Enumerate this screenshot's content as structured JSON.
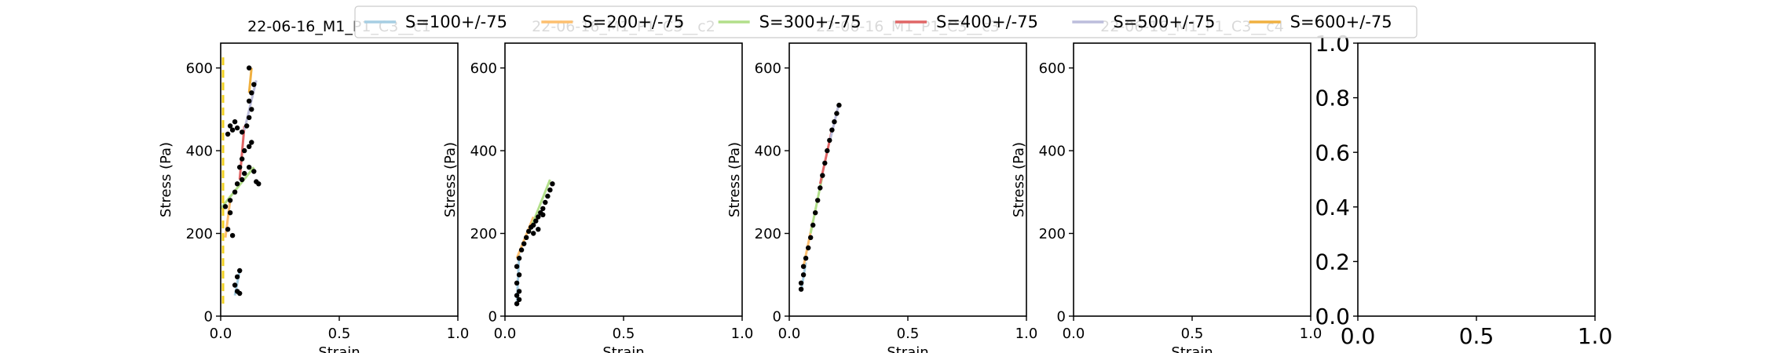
{
  "legend": {
    "entries": [
      {
        "label": "S=100+/-75",
        "color": "#a6cee3"
      },
      {
        "label": "S=200+/-75",
        "color": "#fdbf6f"
      },
      {
        "label": "S=300+/-75",
        "color": "#b2df8a"
      },
      {
        "label": "S=400+/-75",
        "color": "#e06666"
      },
      {
        "label": "S=500+/-75",
        "color": "#bcbddc"
      },
      {
        "label": "S=600+/-75",
        "color": "#f0b040"
      }
    ]
  },
  "chart_data": [
    {
      "type": "scatter",
      "title": "22-06-16_M1_P1_C3__c1",
      "xlabel": "Strain",
      "ylabel": "Stress (Pa)",
      "xlim": [
        0,
        1
      ],
      "ylim": [
        0,
        660
      ],
      "xticks": [
        "0.0",
        "0.5",
        "1.0"
      ],
      "yticks": [
        "0",
        "200",
        "400",
        "600"
      ],
      "points": [
        [
          0.06,
          75
        ],
        [
          0.07,
          95
        ],
        [
          0.08,
          110
        ],
        [
          0.07,
          60
        ],
        [
          0.08,
          55
        ],
        [
          0.05,
          195
        ],
        [
          0.03,
          210
        ],
        [
          0.04,
          250
        ],
        [
          0.02,
          265
        ],
        [
          0.04,
          280
        ],
        [
          0.06,
          300
        ],
        [
          0.07,
          320
        ],
        [
          0.09,
          330
        ],
        [
          0.1,
          345
        ],
        [
          0.12,
          360
        ],
        [
          0.14,
          350
        ],
        [
          0.15,
          325
        ],
        [
          0.16,
          320
        ],
        [
          0.08,
          360
        ],
        [
          0.09,
          380
        ],
        [
          0.1,
          400
        ],
        [
          0.12,
          410
        ],
        [
          0.13,
          420
        ],
        [
          0.03,
          440
        ],
        [
          0.05,
          450
        ],
        [
          0.04,
          460
        ],
        [
          0.06,
          470
        ],
        [
          0.07,
          455
        ],
        [
          0.09,
          445
        ],
        [
          0.11,
          460
        ],
        [
          0.12,
          480
        ],
        [
          0.13,
          500
        ],
        [
          0.12,
          520
        ],
        [
          0.13,
          540
        ],
        [
          0.14,
          560
        ],
        [
          0.12,
          600
        ]
      ],
      "fit_lines": [
        {
          "series": "S=100+/-75",
          "x": [
            0.06,
            0.08
          ],
          "y": [
            50,
            110
          ]
        },
        {
          "series": "S=200+/-75",
          "x": [
            0.02,
            0.04
          ],
          "y": [
            190,
            280
          ]
        },
        {
          "series": "S=300+/-75",
          "x": [
            0.0,
            0.14
          ],
          "y": [
            260,
            360
          ]
        },
        {
          "series": "S=400+/-75",
          "x": [
            0.08,
            0.1
          ],
          "y": [
            330,
            460
          ]
        },
        {
          "series": "S=500+/-75",
          "x": [
            0.1,
            0.15
          ],
          "y": [
            450,
            570
          ]
        },
        {
          "series": "S=600+/-75",
          "x": [
            0.12,
            0.13
          ],
          "y": [
            540,
            600
          ]
        }
      ],
      "vline": {
        "x": 0.01,
        "y": [
          30,
          630
        ],
        "color": "#f0d020"
      }
    },
    {
      "type": "scatter",
      "title": "22-06-16_M1_P1_C3__c2",
      "xlabel": "Strain",
      "ylabel": "Stress (Pa)",
      "xlim": [
        0,
        1
      ],
      "ylim": [
        0,
        660
      ],
      "xticks": [
        "0.0",
        "0.5",
        "1.0"
      ],
      "yticks": [
        "0",
        "200",
        "400",
        "600"
      ],
      "points": [
        [
          0.05,
          30
        ],
        [
          0.06,
          40
        ],
        [
          0.05,
          50
        ],
        [
          0.06,
          60
        ],
        [
          0.05,
          80
        ],
        [
          0.06,
          100
        ],
        [
          0.05,
          120
        ],
        [
          0.06,
          140
        ],
        [
          0.07,
          160
        ],
        [
          0.08,
          175
        ],
        [
          0.09,
          190
        ],
        [
          0.1,
          205
        ],
        [
          0.11,
          215
        ],
        [
          0.12,
          220
        ],
        [
          0.13,
          230
        ],
        [
          0.14,
          240
        ],
        [
          0.15,
          250
        ],
        [
          0.16,
          260
        ],
        [
          0.17,
          275
        ],
        [
          0.18,
          290
        ],
        [
          0.19,
          305
        ],
        [
          0.2,
          320
        ],
        [
          0.12,
          200
        ],
        [
          0.14,
          210
        ],
        [
          0.16,
          245
        ]
      ],
      "fit_lines": [
        {
          "series": "S=100+/-75",
          "x": [
            0.05,
            0.06
          ],
          "y": [
            30,
            150
          ]
        },
        {
          "series": "S=200+/-75",
          "x": [
            0.05,
            0.12
          ],
          "y": [
            140,
            240
          ]
        },
        {
          "series": "S=300+/-75",
          "x": [
            0.1,
            0.19
          ],
          "y": [
            200,
            330
          ]
        }
      ]
    },
    {
      "type": "scatter",
      "title": "22-06-16_M1_P1_C3__c3",
      "xlabel": "Strain",
      "ylabel": "Stress (Pa)",
      "xlim": [
        0,
        1
      ],
      "ylim": [
        0,
        660
      ],
      "xticks": [
        "0.0",
        "0.5",
        "1.0"
      ],
      "yticks": [
        "0",
        "200",
        "400",
        "600"
      ],
      "points": [
        [
          0.05,
          65
        ],
        [
          0.05,
          80
        ],
        [
          0.06,
          100
        ],
        [
          0.06,
          120
        ],
        [
          0.07,
          140
        ],
        [
          0.08,
          165
        ],
        [
          0.09,
          190
        ],
        [
          0.1,
          220
        ],
        [
          0.11,
          250
        ],
        [
          0.12,
          280
        ],
        [
          0.13,
          310
        ],
        [
          0.14,
          340
        ],
        [
          0.15,
          370
        ],
        [
          0.16,
          400
        ],
        [
          0.17,
          425
        ],
        [
          0.18,
          450
        ],
        [
          0.19,
          470
        ],
        [
          0.2,
          490
        ],
        [
          0.21,
          510
        ]
      ],
      "fit_lines": [
        {
          "series": "S=100+/-75",
          "x": [
            0.05,
            0.07
          ],
          "y": [
            60,
            130
          ]
        },
        {
          "series": "S=200+/-75",
          "x": [
            0.06,
            0.1
          ],
          "y": [
            120,
            230
          ]
        },
        {
          "series": "S=300+/-75",
          "x": [
            0.09,
            0.14
          ],
          "y": [
            200,
            340
          ]
        },
        {
          "series": "S=400+/-75",
          "x": [
            0.13,
            0.18
          ],
          "y": [
            320,
            450
          ]
        },
        {
          "series": "S=500+/-75",
          "x": [
            0.17,
            0.21
          ],
          "y": [
            420,
            515
          ]
        }
      ]
    },
    {
      "type": "scatter",
      "title": "22-06-16_M1_P1_C3__c4",
      "xlabel": "Strain",
      "ylabel": "Stress (Pa)",
      "xlim": [
        0,
        1
      ],
      "ylim": [
        0,
        660
      ],
      "xticks": [
        "0.0",
        "0.5",
        "1.0"
      ],
      "yticks": [
        "0",
        "200",
        "400",
        "600"
      ],
      "points": [],
      "fit_lines": []
    },
    {
      "type": "scatter",
      "title": "",
      "xlabel": "",
      "ylabel": "",
      "xlim": [
        0,
        1
      ],
      "ylim": [
        0,
        1
      ],
      "xticks": [
        "0.0",
        "0.5",
        "1.0"
      ],
      "yticks": [
        "0.0",
        "0.2",
        "0.4",
        "0.6",
        "0.8",
        "1.0"
      ],
      "points": [],
      "fit_lines": []
    }
  ]
}
